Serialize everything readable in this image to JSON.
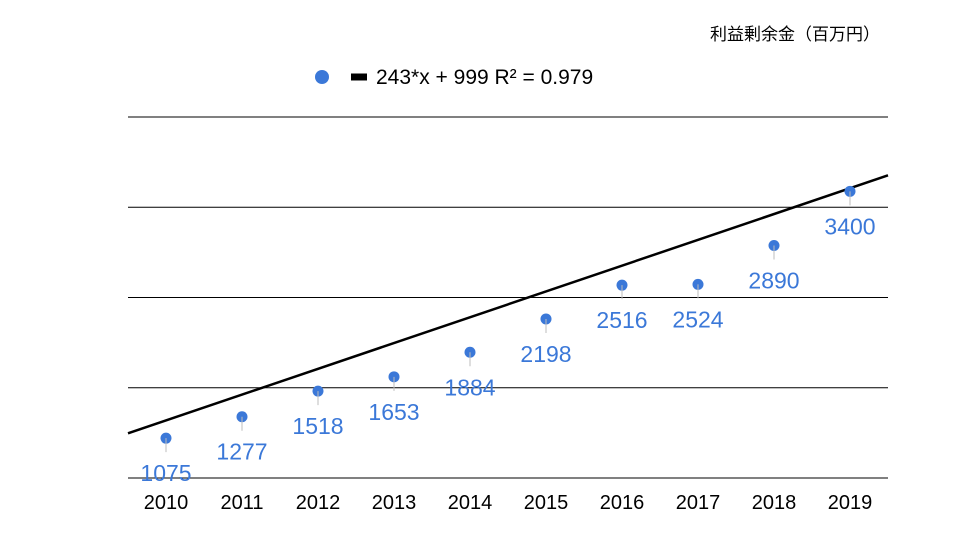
{
  "chart_data": {
    "type": "scatter",
    "title": "利益剰余金（百万円）",
    "legend": {
      "placement": "top-center",
      "trendline_label": "243*x + 999 R² = 0.979"
    },
    "x": [
      "2010",
      "2011",
      "2012",
      "2013",
      "2014",
      "2015",
      "2016",
      "2017",
      "2018",
      "2019"
    ],
    "series": [
      {
        "values": [
          1075,
          1277,
          1518,
          1653,
          1884,
          2198,
          2516,
          2524,
          2890,
          3400
        ],
        "data_labels": [
          "1075",
          "1277",
          "1518",
          "1653",
          "1884",
          "2198",
          "2516",
          "2524",
          "2890",
          "3400"
        ]
      }
    ],
    "trendline": {
      "type": "linear",
      "slope": 243,
      "intercept": 999,
      "r2": 0.979
    },
    "ylim": [
      700,
      4100
    ],
    "gridlines": [
      700,
      1550,
      2400,
      3250,
      4100
    ],
    "grid": true,
    "colors": {
      "point": "#3b78d8",
      "trendline": "#000000",
      "grid": "#000000",
      "label": "#3b78d8",
      "text": "#000000"
    }
  }
}
